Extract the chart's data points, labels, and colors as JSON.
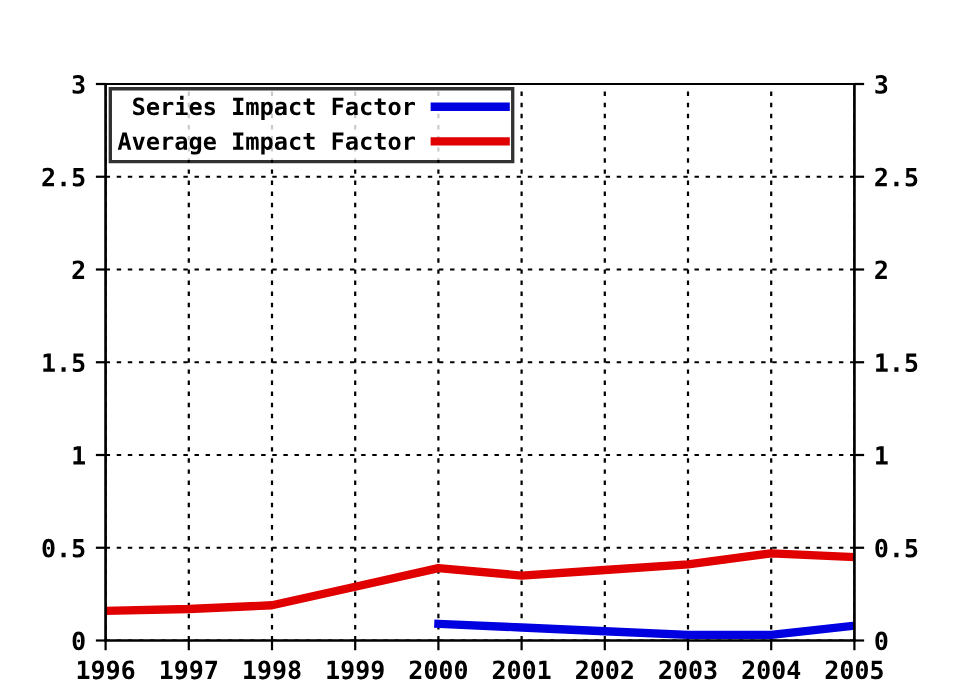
{
  "chart_data": {
    "type": "line",
    "x": [
      1996,
      1997,
      1998,
      1999,
      2000,
      2001,
      2002,
      2003,
      2004,
      2005
    ],
    "series": [
      {
        "name": "Series Impact Factor",
        "color": "#0000e0",
        "values": [
          null,
          null,
          null,
          null,
          0.09,
          0.07,
          0.05,
          0.03,
          0.03,
          0.08
        ]
      },
      {
        "name": "Average Impact Factor",
        "color": "#e00000",
        "values": [
          0.16,
          0.17,
          0.19,
          0.29,
          0.39,
          0.35,
          0.38,
          0.41,
          0.47,
          0.45
        ]
      }
    ],
    "xlim": [
      1996,
      2005
    ],
    "xticks": [
      1996,
      1997,
      1998,
      1999,
      2000,
      2001,
      2002,
      2003,
      2004,
      2005
    ],
    "ylim": [
      0,
      3
    ],
    "yticks": [
      0,
      0.5,
      1,
      1.5,
      2,
      2.5,
      3
    ],
    "y2lim": [
      0,
      3
    ],
    "y2ticks": [
      0,
      0.5,
      1,
      1.5,
      2,
      2.5,
      3
    ],
    "grid": true,
    "legend": "top left",
    "line_style": "solid",
    "marker": "none"
  }
}
